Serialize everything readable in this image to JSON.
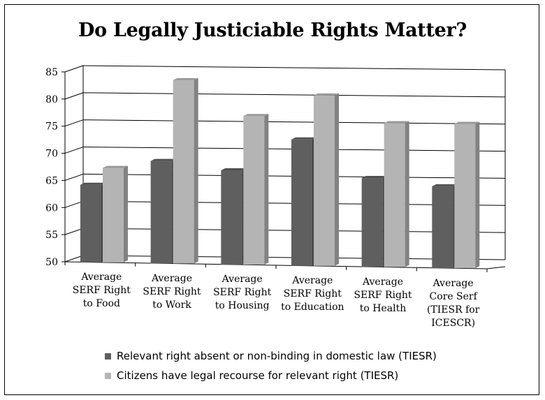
{
  "chart_data": {
    "type": "bar",
    "title": "Do Legally Justiciable Rights Matter?",
    "xlabel": "",
    "ylabel": "",
    "ylim": [
      50,
      85
    ],
    "yticks": [
      "50",
      "55",
      "60",
      "65",
      "70",
      "75",
      "80",
      "85"
    ],
    "grid": true,
    "legend_position": "bottom",
    "categories": [
      "Average\nSERF Right\nto Food",
      "Average\nSERF Right\nto Work",
      "Average\nSERF Right\nto Housing",
      "Average\nSERF Right\nto Education",
      "Average\nSERF Right\nto Health",
      "Average\nCore Serf\n(TIESR for\nICESCR)"
    ],
    "series": [
      {
        "name": "Relevant right absent or non-binding in domestic law (TIESR)",
        "color": "#5f5f5f",
        "values": [
          64.3,
          68.9,
          67.4,
          73.3,
          66.4,
          65.1
        ]
      },
      {
        "name": "Citizens have legal recourse for relevant right (TIESR)",
        "color": "#b4b4b4",
        "values": [
          67.4,
          83.8,
          77.4,
          81.4,
          76.5,
          76.6
        ]
      }
    ]
  }
}
